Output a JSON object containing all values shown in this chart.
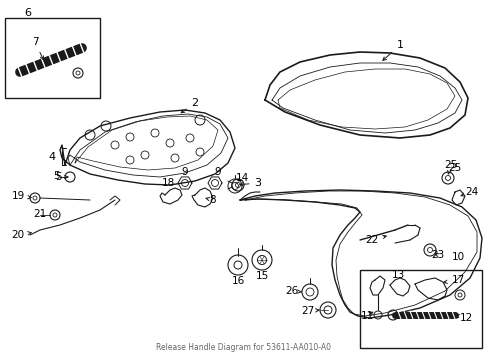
{
  "background_color": "#ffffff",
  "line_color": "#1a1a1a",
  "text_color": "#000000",
  "fig_width": 4.89,
  "fig_height": 3.6,
  "dpi": 100,
  "subtitle": "Release Handle Diagram for 53611-AA010-A0"
}
